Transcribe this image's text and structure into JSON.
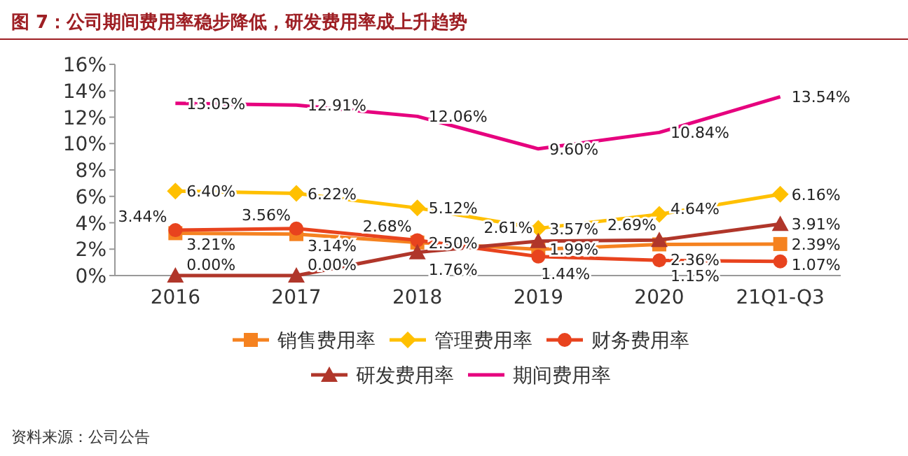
{
  "chart_data": {
    "type": "line",
    "title": "图 7：公司期间费用率稳步降低，研发费用率成上升趋势",
    "categories": [
      "2016",
      "2017",
      "2018",
      "2019",
      "2020",
      "21Q1-Q3"
    ],
    "ylim": [
      0,
      16
    ],
    "yticks": [
      {
        "value": 0,
        "label": "0%"
      },
      {
        "value": 2,
        "label": "2%"
      },
      {
        "value": 4,
        "label": "4%"
      },
      {
        "value": 6,
        "label": "6%"
      },
      {
        "value": 8,
        "label": "8%"
      },
      {
        "value": 10,
        "label": "10%"
      },
      {
        "value": 12,
        "label": "12%"
      },
      {
        "value": 14,
        "label": "14%"
      },
      {
        "value": 16,
        "label": "16%"
      }
    ],
    "grid": false,
    "legend": "bottom",
    "series": [
      {
        "name": "销售费用率",
        "color": "#f58220",
        "marker": "square",
        "values": [
          3.21,
          3.14,
          2.5,
          1.99,
          2.36,
          2.39
        ],
        "value_labels": [
          "3.21%",
          "3.14%",
          "2.50%",
          "1.99%",
          "2.36%",
          "2.39%"
        ]
      },
      {
        "name": "管理费用率",
        "color": "#ffc000",
        "marker": "diamond",
        "values": [
          6.4,
          6.22,
          5.12,
          3.57,
          4.64,
          6.16
        ],
        "value_labels": [
          "6.40%",
          "6.22%",
          "5.12%",
          "3.57%",
          "4.64%",
          "6.16%"
        ]
      },
      {
        "name": "财务费用率",
        "color": "#e8431e",
        "marker": "circle",
        "values": [
          3.44,
          3.56,
          2.68,
          1.44,
          1.15,
          1.07
        ],
        "value_labels": [
          "3.44%",
          "3.56%",
          "2.68%",
          "1.44%",
          "1.15%",
          "1.07%"
        ]
      },
      {
        "name": "研发费用率",
        "color": "#b0362a",
        "marker": "triangle",
        "values": [
          0.0,
          0.0,
          1.76,
          2.61,
          2.69,
          3.91
        ],
        "value_labels": [
          "0.00%",
          "0.00%",
          "1.76%",
          "2.61%",
          "2.69%",
          "3.91%"
        ]
      },
      {
        "name": "期间费用率",
        "color": "#e6007e",
        "marker": "none",
        "values": [
          13.05,
          12.91,
          12.06,
          9.6,
          10.84,
          13.54
        ],
        "value_labels": [
          "13.05%",
          "12.91%",
          "12.06%",
          "9.60%",
          "10.84%",
          "13.54%"
        ]
      }
    ],
    "annotations": [
      "资料来源：公司公告"
    ]
  }
}
